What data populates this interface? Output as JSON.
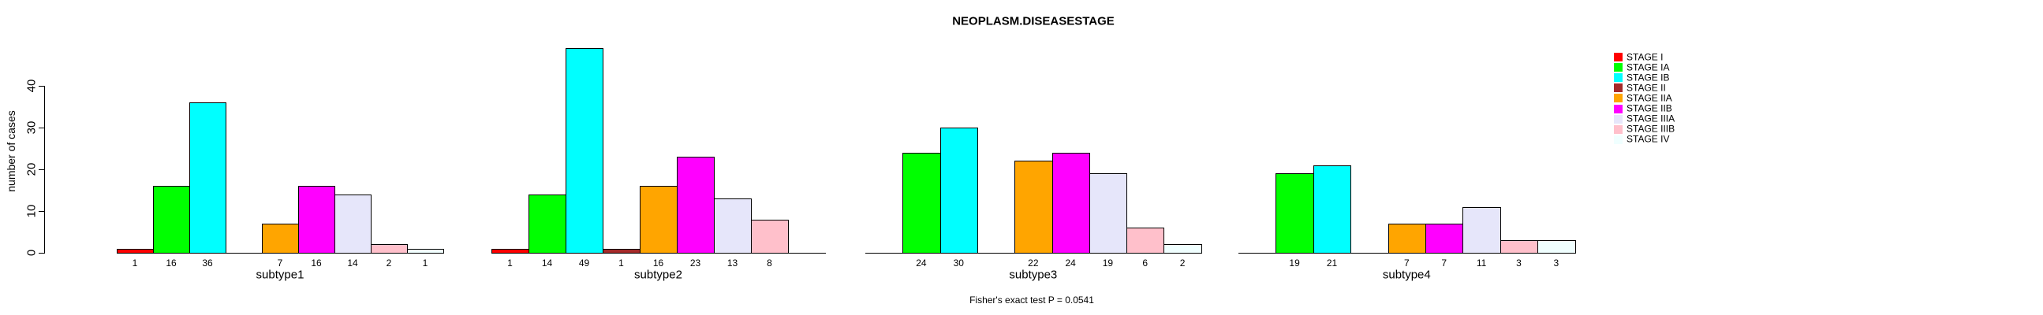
{
  "chart_data": {
    "type": "bar",
    "title": "NEOPLASM.DISEASESTAGE",
    "xlabel": "",
    "ylabel": "number of cases",
    "annotation": "Fisher's exact test P = 0.0541",
    "ylim": [
      0,
      49
    ],
    "yticks": [
      0,
      10,
      20,
      30,
      40
    ],
    "grid": false,
    "legend_position": "right",
    "bar_labels_shown": true,
    "categories": [
      "subtype1",
      "subtype2",
      "subtype3",
      "subtype4"
    ],
    "series": [
      {
        "name": "STAGE I",
        "color": "#FF0000",
        "values": [
          1,
          1,
          null,
          null
        ]
      },
      {
        "name": "STAGE IA",
        "color": "#00FF00",
        "values": [
          16,
          14,
          24,
          19
        ]
      },
      {
        "name": "STAGE IB",
        "color": "#00FFFF",
        "values": [
          36,
          49,
          30,
          21
        ]
      },
      {
        "name": "STAGE II",
        "color": "#A52A2A",
        "values": [
          null,
          1,
          null,
          null
        ]
      },
      {
        "name": "STAGE IIA",
        "color": "#FFA500",
        "values": [
          7,
          16,
          22,
          7
        ]
      },
      {
        "name": "STAGE IIB",
        "color": "#FF00FF",
        "values": [
          16,
          23,
          24,
          7
        ]
      },
      {
        "name": "STAGE IIIA",
        "color": "#E6E6FA",
        "values": [
          14,
          13,
          19,
          11
        ]
      },
      {
        "name": "STAGE IIIB",
        "color": "#FFC0CB",
        "values": [
          2,
          8,
          6,
          3
        ]
      },
      {
        "name": "STAGE IV",
        "color": "#F0FFFF",
        "values": [
          1,
          null,
          2,
          3
        ]
      }
    ]
  }
}
